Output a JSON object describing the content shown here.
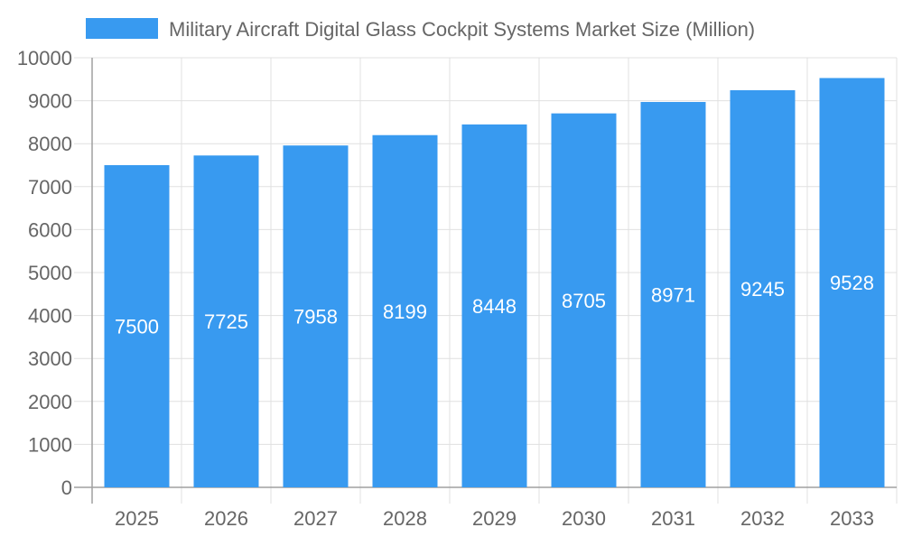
{
  "chart_data": {
    "type": "bar",
    "title": "",
    "xlabel": "",
    "ylabel": "",
    "categories": [
      "2025",
      "2026",
      "2027",
      "2028",
      "2029",
      "2030",
      "2031",
      "2032",
      "2033"
    ],
    "series": [
      {
        "name": "Military Aircraft Digital Glass Cockpit Systems Market Size (Million)",
        "values": [
          7500,
          7725,
          7958,
          8199,
          8448,
          8705,
          8971,
          9245,
          9528
        ]
      }
    ],
    "ylim": [
      0,
      10000
    ],
    "yticks": [
      0,
      1000,
      2000,
      3000,
      4000,
      5000,
      6000,
      7000,
      8000,
      9000,
      10000
    ],
    "grid": true,
    "legend": "top",
    "data_labels": "inside-center",
    "colors": {
      "bar": "#389af0",
      "grid": "#e0e0e0",
      "axis": "#a0a0a0",
      "text": "#666666",
      "label": "#ffffff"
    }
  }
}
